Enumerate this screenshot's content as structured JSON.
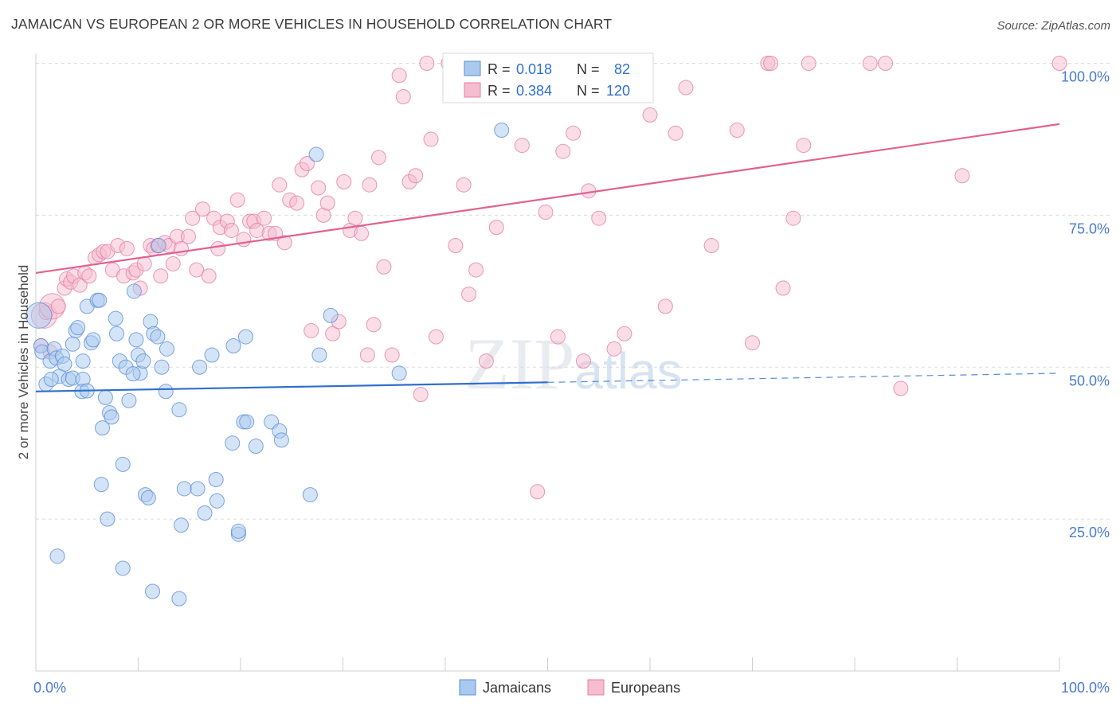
{
  "chart_data": {
    "type": "scatter",
    "title": "JAMAICAN VS EUROPEAN 2 OR MORE VEHICLES IN HOUSEHOLD CORRELATION CHART",
    "source": "Source: ZipAtlas.com",
    "ylabel": "2 or more Vehicles in Household",
    "xlabel": "",
    "xlim": [
      0,
      100
    ],
    "ylim": [
      0,
      103
    ],
    "x_tick_labels": [
      "0.0%",
      "100.0%"
    ],
    "y_ticks": [
      {
        "value": 25,
        "label": "25.0%"
      },
      {
        "value": 50,
        "label": "50.0%"
      },
      {
        "value": 75,
        "label": "75.0%"
      },
      {
        "value": 100,
        "label": "100.0%"
      }
    ],
    "grid": true,
    "legend_position": "bottom-center",
    "watermark": "ZIPatlas",
    "colors": {
      "jamaicans_fill": "#a9c9ef",
      "jamaicans_stroke": "#5c8fd6",
      "jamaicans_line": "#2f6fcc",
      "europeans_fill": "#f6bcd0",
      "europeans_stroke": "#e47fa4",
      "europeans_line": "#e0628f",
      "tick_label": "#4a7bd0"
    },
    "stats": [
      {
        "series": "Jamaicans",
        "r_label": "R =",
        "r_value": "0.018",
        "n_label": "N =",
        "n_value": "82"
      },
      {
        "series": "Europeans",
        "r_label": "R =",
        "r_value": "0.384",
        "n_label": "N =",
        "n_value": "120"
      }
    ],
    "series": [
      {
        "name": "Jamaicans",
        "trend": {
          "x": [
            0,
            50
          ],
          "y": [
            46.0,
            47.5
          ],
          "dashed_extension": {
            "x": [
              50,
              100
            ],
            "y": [
              47.5,
              49.0
            ]
          }
        },
        "points": [
          [
            0.3,
            58.5
          ],
          [
            0.5,
            53.5
          ],
          [
            0.6,
            52.5
          ],
          [
            1.0,
            47.2
          ],
          [
            1.4,
            51.0
          ],
          [
            1.8,
            53.0
          ],
          [
            2.0,
            51.5
          ],
          [
            2.3,
            48.5
          ],
          [
            2.6,
            51.8
          ],
          [
            2.8,
            50.5
          ],
          [
            3.2,
            48.0
          ],
          [
            3.6,
            48.2
          ],
          [
            3.6,
            53.8
          ],
          [
            3.9,
            56.0
          ],
          [
            4.1,
            56.5
          ],
          [
            4.6,
            48.0
          ],
          [
            4.6,
            51.0
          ],
          [
            4.5,
            46.0
          ],
          [
            5.0,
            60.0
          ],
          [
            5.4,
            54.0
          ],
          [
            5.6,
            54.5
          ],
          [
            6.0,
            61.0
          ],
          [
            6.2,
            61.0
          ],
          [
            6.5,
            40.0
          ],
          [
            6.8,
            45.0
          ],
          [
            7.2,
            42.5
          ],
          [
            7.4,
            41.8
          ],
          [
            7.8,
            58.0
          ],
          [
            7.9,
            55.5
          ],
          [
            8.2,
            51.0
          ],
          [
            8.5,
            34.0
          ],
          [
            8.8,
            50.0
          ],
          [
            9.1,
            44.5
          ],
          [
            9.6,
            62.5
          ],
          [
            9.8,
            54.5
          ],
          [
            10.0,
            52.0
          ],
          [
            10.2,
            49.0
          ],
          [
            10.5,
            51.0
          ],
          [
            10.7,
            29.0
          ],
          [
            11.0,
            28.5
          ],
          [
            11.2,
            57.5
          ],
          [
            11.5,
            55.5
          ],
          [
            11.9,
            55.0
          ],
          [
            12.3,
            50.0
          ],
          [
            12.7,
            46.0
          ],
          [
            12.8,
            53.0
          ],
          [
            12.0,
            70.0
          ],
          [
            14.0,
            43.0
          ],
          [
            14.5,
            30.0
          ],
          [
            15.8,
            30.0
          ],
          [
            16.0,
            50.0
          ],
          [
            16.5,
            26.0
          ],
          [
            17.2,
            52.0
          ],
          [
            17.6,
            31.5
          ],
          [
            17.7,
            28.0
          ],
          [
            19.2,
            37.5
          ],
          [
            19.3,
            53.5
          ],
          [
            19.8,
            22.5
          ],
          [
            19.8,
            23.0
          ],
          [
            20.3,
            41.0
          ],
          [
            20.5,
            55.0
          ],
          [
            20.6,
            41.0
          ],
          [
            21.5,
            37.0
          ],
          [
            23.0,
            41.0
          ],
          [
            23.8,
            39.5
          ],
          [
            24.0,
            38.0
          ],
          [
            26.8,
            29.0
          ],
          [
            27.4,
            85.0
          ],
          [
            27.7,
            52.0
          ],
          [
            28.8,
            58.5
          ],
          [
            35.5,
            49.0
          ],
          [
            45.5,
            89.0
          ],
          [
            2.1,
            18.9
          ],
          [
            6.4,
            30.7
          ],
          [
            7.0,
            25.0
          ],
          [
            8.5,
            16.9
          ],
          [
            11.4,
            13.1
          ],
          [
            14.0,
            11.9
          ],
          [
            14.2,
            24.0
          ],
          [
            1.5,
            48.0
          ],
          [
            5.0,
            46.1
          ],
          [
            9.5,
            48.9
          ]
        ]
      },
      {
        "name": "Europeans",
        "trend": {
          "x": [
            0,
            100
          ],
          "y": [
            65.5,
            90.0
          ]
        },
        "points": [
          [
            0.5,
            53.5
          ],
          [
            0.8,
            58.5
          ],
          [
            1.0,
            59.0
          ],
          [
            1.4,
            52.5
          ],
          [
            1.6,
            60.0
          ],
          [
            2.2,
            60.0
          ],
          [
            2.8,
            63.0
          ],
          [
            3.0,
            64.5
          ],
          [
            3.4,
            64.0
          ],
          [
            3.7,
            65.0
          ],
          [
            4.3,
            63.5
          ],
          [
            4.8,
            65.5
          ],
          [
            5.2,
            65.0
          ],
          [
            5.8,
            68.0
          ],
          [
            6.2,
            68.5
          ],
          [
            6.6,
            69.0
          ],
          [
            7.0,
            69.0
          ],
          [
            7.5,
            66.0
          ],
          [
            8.0,
            70.0
          ],
          [
            8.6,
            65.0
          ],
          [
            8.9,
            69.5
          ],
          [
            9.5,
            65.5
          ],
          [
            9.8,
            66.0
          ],
          [
            10.2,
            63.0
          ],
          [
            10.6,
            67.0
          ],
          [
            11.2,
            70.0
          ],
          [
            11.5,
            69.5
          ],
          [
            11.9,
            70.0
          ],
          [
            12.2,
            65.0
          ],
          [
            12.6,
            70.5
          ],
          [
            13.0,
            70.0
          ],
          [
            13.4,
            67.0
          ],
          [
            13.8,
            71.5
          ],
          [
            14.2,
            69.5
          ],
          [
            14.9,
            71.5
          ],
          [
            15.3,
            74.5
          ],
          [
            15.7,
            66.0
          ],
          [
            16.3,
            76.0
          ],
          [
            16.9,
            65.0
          ],
          [
            17.4,
            74.5
          ],
          [
            17.8,
            69.5
          ],
          [
            18.0,
            73.0
          ],
          [
            18.7,
            74.0
          ],
          [
            19.1,
            72.5
          ],
          [
            19.7,
            77.5
          ],
          [
            20.3,
            71.0
          ],
          [
            20.9,
            74.0
          ],
          [
            21.3,
            74.0
          ],
          [
            21.6,
            72.5
          ],
          [
            22.3,
            74.5
          ],
          [
            22.8,
            72.0
          ],
          [
            23.4,
            72.0
          ],
          [
            23.8,
            80.0
          ],
          [
            24.3,
            70.5
          ],
          [
            24.8,
            77.5
          ],
          [
            25.5,
            77.0
          ],
          [
            26.0,
            82.5
          ],
          [
            26.5,
            83.5
          ],
          [
            26.9,
            56.0
          ],
          [
            27.6,
            79.5
          ],
          [
            28.1,
            75.0
          ],
          [
            28.5,
            77.0
          ],
          [
            29.0,
            55.5
          ],
          [
            29.6,
            57.5
          ],
          [
            30.1,
            80.5
          ],
          [
            30.7,
            72.5
          ],
          [
            31.2,
            74.5
          ],
          [
            31.8,
            72.0
          ],
          [
            32.4,
            52.0
          ],
          [
            32.6,
            80.0
          ],
          [
            33.0,
            57.0
          ],
          [
            33.5,
            84.5
          ],
          [
            34.0,
            66.5
          ],
          [
            34.8,
            52.0
          ],
          [
            35.5,
            98.0
          ],
          [
            35.9,
            94.5
          ],
          [
            36.5,
            80.5
          ],
          [
            37.1,
            81.5
          ],
          [
            37.6,
            45.5
          ],
          [
            38.2,
            100.0
          ],
          [
            38.6,
            87.5
          ],
          [
            39.1,
            55.0
          ],
          [
            40.3,
            100.0
          ],
          [
            41.0,
            70.0
          ],
          [
            41.8,
            80.0
          ],
          [
            42.3,
            62.0
          ],
          [
            43.0,
            66.0
          ],
          [
            44.0,
            51.0
          ],
          [
            45.0,
            73.0
          ],
          [
            45.8,
            100.0
          ],
          [
            46.3,
            96.5
          ],
          [
            47.5,
            86.5
          ],
          [
            48.3,
            100.0
          ],
          [
            49.0,
            29.5
          ],
          [
            49.8,
            75.5
          ],
          [
            51.0,
            55.0
          ],
          [
            51.5,
            85.5
          ],
          [
            52.5,
            88.5
          ],
          [
            53.5,
            51.0
          ],
          [
            54.0,
            79.0
          ],
          [
            55.0,
            74.5
          ],
          [
            56.5,
            53.0
          ],
          [
            57.5,
            55.5
          ],
          [
            58.5,
            96.5
          ],
          [
            60.0,
            91.5
          ],
          [
            61.5,
            60.0
          ],
          [
            62.5,
            88.5
          ],
          [
            63.5,
            96.0
          ],
          [
            66.0,
            70.0
          ],
          [
            68.5,
            89.0
          ],
          [
            70.0,
            54.0
          ],
          [
            71.5,
            100.0
          ],
          [
            71.8,
            100.0
          ],
          [
            73.0,
            63.0
          ],
          [
            74.0,
            74.5
          ],
          [
            75.0,
            86.5
          ],
          [
            75.5,
            100.0
          ],
          [
            81.5,
            100.0
          ],
          [
            83.0,
            100.0
          ],
          [
            84.5,
            46.5
          ],
          [
            90.5,
            81.5
          ],
          [
            100.0,
            100.0
          ]
        ]
      }
    ]
  },
  "legend": {
    "items": [
      {
        "label": "Jamaicans"
      },
      {
        "label": "Europeans"
      }
    ]
  }
}
